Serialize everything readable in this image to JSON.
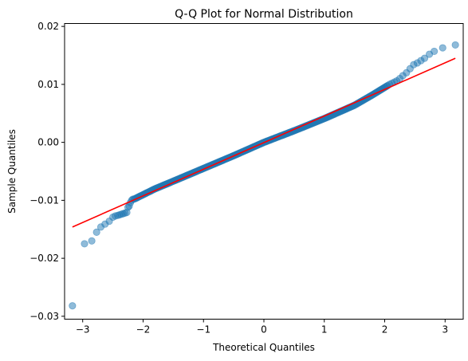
{
  "chart_data": {
    "type": "scatter",
    "title": "Q-Q Plot for  Normal Distribution",
    "xlabel": "Theoretical Quantiles",
    "ylabel": "Sample Quantiles",
    "xlim": [
      -3.3,
      3.3
    ],
    "ylim": [
      -0.0305,
      0.0205
    ],
    "xticks": [
      -3,
      -2,
      -1,
      0,
      1,
      2,
      3
    ],
    "xtick_labels": [
      "−3",
      "−2",
      "−1",
      "0",
      "1",
      "2",
      "3"
    ],
    "yticks": [
      -0.03,
      -0.02,
      -0.01,
      0.0,
      0.01,
      0.02
    ],
    "ytick_labels": [
      "−0.03",
      "−0.02",
      "−0.01",
      "0.00",
      "0.01",
      "0.02"
    ],
    "grid": false,
    "points_color": "#1f77b4",
    "points_alpha": 0.5,
    "line_color": "#ff0000",
    "reference_line": {
      "x": [
        -3.17,
        3.17
      ],
      "y": [
        -0.0146,
        0.0145
      ]
    },
    "tail_points": {
      "x": [
        -3.17,
        -2.97,
        -2.85,
        -2.77,
        -2.7,
        -2.63,
        -2.56,
        -2.5,
        -2.46,
        -2.42,
        -2.39,
        -2.36,
        -2.33,
        -2.3,
        -2.27,
        -2.25,
        -2.23,
        -2.21,
        -2.19,
        -2.17,
        2.08,
        2.12,
        2.16,
        2.2,
        2.25,
        2.3,
        2.36,
        2.42,
        2.48,
        2.54,
        2.6,
        2.66,
        2.74,
        2.82,
        2.96,
        3.17
      ],
      "y": [
        -0.0282,
        -0.0175,
        -0.017,
        -0.0155,
        -0.0146,
        -0.0141,
        -0.0136,
        -0.0129,
        -0.0127,
        -0.0126,
        -0.0125,
        -0.0124,
        -0.0123,
        -0.0122,
        -0.0121,
        -0.0112,
        -0.011,
        -0.0104,
        -0.01,
        -0.0098,
        0.01,
        0.0102,
        0.0104,
        0.0106,
        0.011,
        0.0115,
        0.012,
        0.0127,
        0.0134,
        0.0137,
        0.0141,
        0.0145,
        0.0152,
        0.0157,
        0.0163,
        0.0168
      ]
    },
    "body_curve": {
      "x": [
        -2.15,
        -1.8,
        -1.5,
        -1.0,
        -0.5,
        0.0,
        0.5,
        1.0,
        1.5,
        1.8,
        2.05
      ],
      "y": [
        -0.0098,
        -0.008,
        -0.0067,
        -0.0045,
        -0.0023,
        0.0,
        0.002,
        0.0041,
        0.0064,
        0.0082,
        0.0098
      ]
    },
    "body_point_count": 260
  }
}
